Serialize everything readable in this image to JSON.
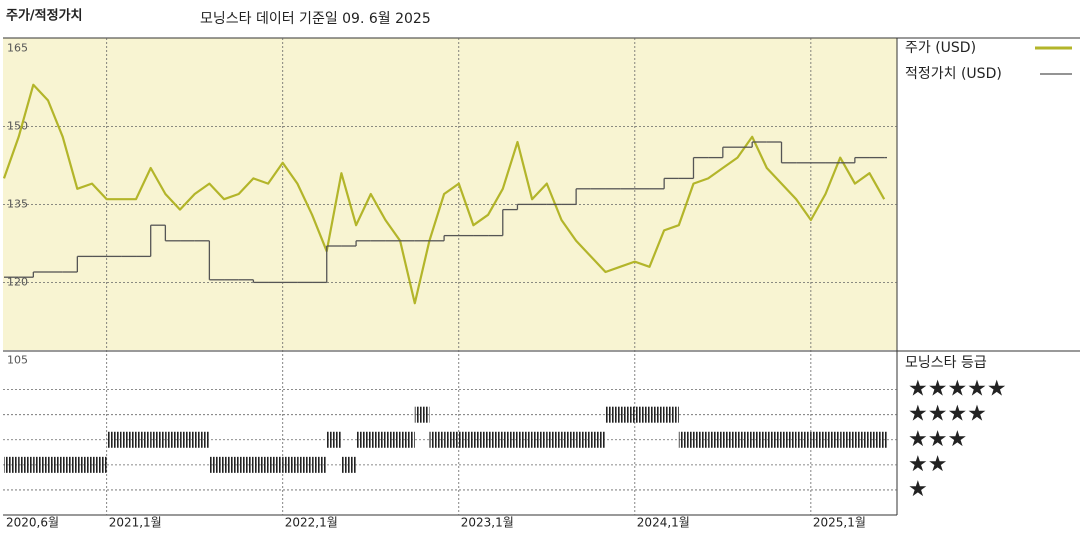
{
  "chart_data": [
    {
      "type": "line",
      "title": "주가/적정가치",
      "subtitle": "모닝스타 데이터 기준일 09. 6월 2025",
      "x": [
        "2020-06",
        "2020-07",
        "2020-08",
        "2020-09",
        "2020-10",
        "2020-11",
        "2020-12",
        "2021-01",
        "2021-02",
        "2021-03",
        "2021-04",
        "2021-05",
        "2021-06",
        "2021-07",
        "2021-08",
        "2021-09",
        "2021-10",
        "2021-11",
        "2021-12",
        "2022-01",
        "2022-02",
        "2022-03",
        "2022-04",
        "2022-05",
        "2022-06",
        "2022-07",
        "2022-08",
        "2022-09",
        "2022-10",
        "2022-11",
        "2022-12",
        "2023-01",
        "2023-02",
        "2023-03",
        "2023-04",
        "2023-05",
        "2023-06",
        "2023-07",
        "2023-08",
        "2023-09",
        "2023-10",
        "2023-11",
        "2023-12",
        "2024-01",
        "2024-02",
        "2024-03",
        "2024-04",
        "2024-05",
        "2024-06",
        "2024-07",
        "2024-08",
        "2024-09",
        "2024-10",
        "2024-11",
        "2024-12",
        "2025-01",
        "2025-02",
        "2025-03",
        "2025-04",
        "2025-05",
        "2025-06"
      ],
      "series": [
        {
          "name": "주가 (USD)",
          "color": "#b3b52a",
          "style": "line",
          "values": [
            140,
            148,
            158,
            155,
            148,
            138,
            139,
            136,
            136,
            136,
            142,
            137,
            134,
            137,
            139,
            136,
            137,
            140,
            139,
            143,
            139,
            133,
            126,
            141,
            131,
            137,
            132,
            128,
            116,
            128,
            137,
            139,
            131,
            133,
            138,
            147,
            136,
            139,
            132,
            128,
            125,
            122,
            123,
            124,
            123,
            130,
            131,
            139,
            140,
            142,
            144,
            148,
            142,
            139,
            136,
            132,
            137,
            144,
            139,
            141,
            136
          ]
        },
        {
          "name": "적정가치 (USD)",
          "color": "#555555",
          "style": "step",
          "values": [
            121,
            121,
            122,
            122,
            122,
            125,
            125,
            125,
            125,
            125,
            131,
            128,
            128,
            128,
            120.5,
            120.5,
            120.5,
            120,
            120,
            120,
            120,
            120,
            127,
            127,
            128,
            128,
            128,
            128,
            128,
            128,
            129,
            129,
            129,
            129,
            134,
            135,
            135,
            135,
            135,
            138,
            138,
            138,
            138,
            138,
            138,
            140,
            140,
            144,
            144,
            146,
            146,
            147,
            147,
            143,
            143,
            143,
            143,
            143,
            144,
            144,
            144
          ]
        }
      ],
      "ylim": [
        105,
        167
      ],
      "yticks": [
        105,
        120,
        135,
        150,
        165
      ],
      "xticks": [
        {
          "value": "2020-06",
          "label": "2020,6월"
        },
        {
          "value": "2021-01",
          "label": "2021,1월"
        },
        {
          "value": "2022-01",
          "label": "2022,1월"
        },
        {
          "value": "2023-01",
          "label": "2023,1월"
        },
        {
          "value": "2024-01",
          "label": "2024,1월"
        },
        {
          "value": "2025-01",
          "label": "2025,1월"
        }
      ],
      "grid": true,
      "background": "#f8f4d2"
    },
    {
      "type": "rating",
      "title": "모닝스타 등급",
      "x": [
        "2020-06",
        "2020-07",
        "2020-08",
        "2020-09",
        "2020-10",
        "2020-11",
        "2020-12",
        "2021-01",
        "2021-02",
        "2021-03",
        "2021-04",
        "2021-05",
        "2021-06",
        "2021-07",
        "2021-08",
        "2021-09",
        "2021-10",
        "2021-11",
        "2021-12",
        "2022-01",
        "2022-02",
        "2022-03",
        "2022-04",
        "2022-05",
        "2022-06",
        "2022-07",
        "2022-08",
        "2022-09",
        "2022-10",
        "2022-11",
        "2022-12",
        "2023-01",
        "2023-02",
        "2023-03",
        "2023-04",
        "2023-05",
        "2023-06",
        "2023-07",
        "2023-08",
        "2023-09",
        "2023-10",
        "2023-11",
        "2023-12",
        "2024-01",
        "2024-02",
        "2024-03",
        "2024-04",
        "2024-05",
        "2024-06",
        "2024-07",
        "2024-08",
        "2024-09",
        "2024-10",
        "2024-11",
        "2024-12",
        "2025-01",
        "2025-02",
        "2025-03",
        "2025-04",
        "2025-05",
        "2025-06"
      ],
      "values": [
        2,
        2,
        2,
        2,
        2,
        2,
        2,
        3,
        3,
        3,
        3,
        3,
        3,
        3,
        2,
        2,
        2,
        2,
        2,
        2,
        2,
        2,
        3,
        2,
        3,
        3,
        3,
        3,
        4,
        3,
        3,
        3,
        3,
        3,
        3,
        3,
        3,
        3,
        3,
        3,
        3,
        4,
        4,
        4,
        4,
        4,
        3,
        3,
        3,
        3,
        3,
        3,
        3,
        3,
        3,
        3,
        3,
        3,
        3,
        3,
        3
      ],
      "color": "#222222",
      "ylim": [
        0,
        6.5
      ],
      "yticks": [
        {
          "value": 5,
          "label": "★★★★★"
        },
        {
          "value": 4,
          "label": "★★★★"
        },
        {
          "value": 3,
          "label": "★★★"
        },
        {
          "value": 2,
          "label": "★★"
        },
        {
          "value": 1,
          "label": "★"
        }
      ],
      "grid": true
    }
  ]
}
